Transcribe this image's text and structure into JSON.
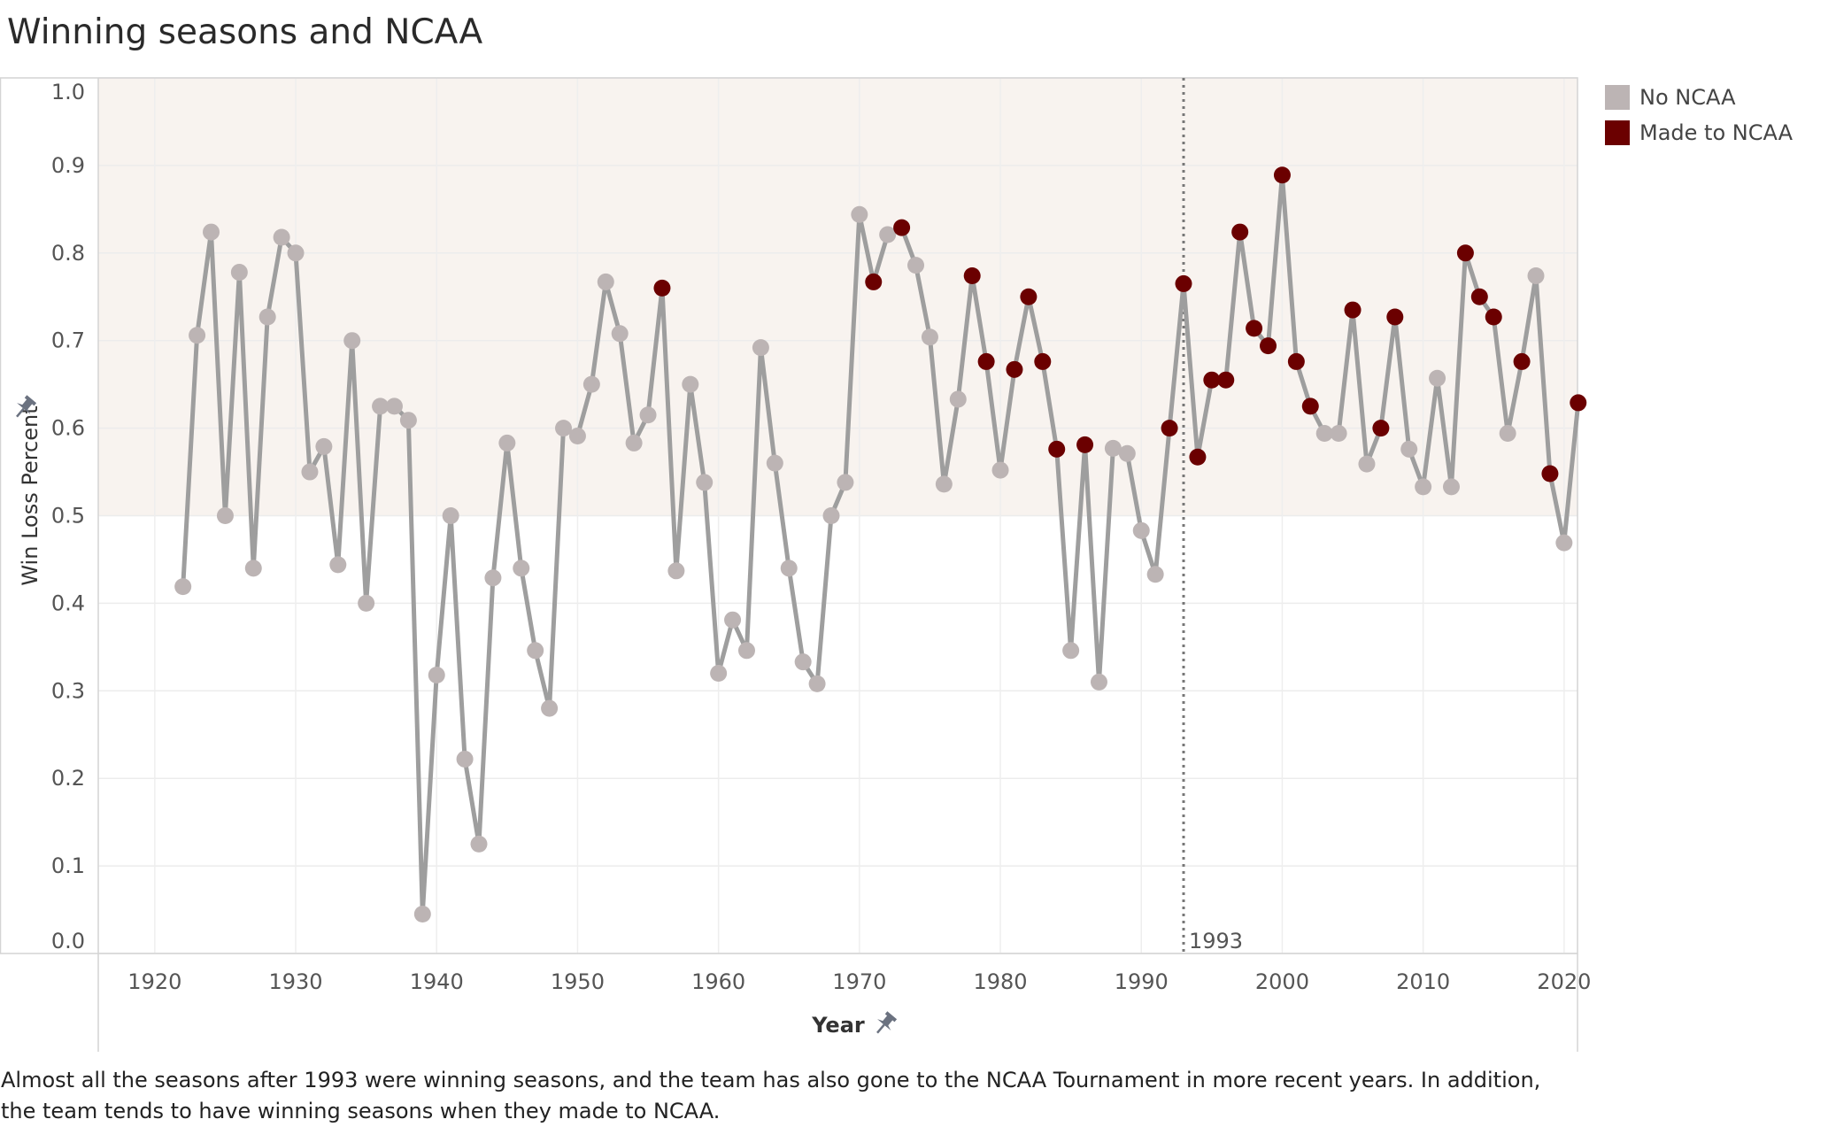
{
  "title": "Winning seasons and NCAA",
  "caption": "Almost all the seasons after 1993 were winning seasons, and the team has also gone to the NCAA Tournament in more recent years. In addition, the team tends to have winning seasons when they made to NCAA.",
  "legend": {
    "items": [
      {
        "label": "No NCAA",
        "color": "#bcb4b4"
      },
      {
        "label": "Made to NCAA",
        "color": "#6b0000"
      }
    ]
  },
  "chart_data": {
    "type": "line",
    "title": "Winning seasons and NCAA",
    "xlabel": "Year",
    "ylabel": "Win Loss Percent",
    "xlim": [
      1918,
      2025
    ],
    "ylim": [
      0,
      1
    ],
    "x_ticks": [
      "1920",
      "1930",
      "1940",
      "1950",
      "1960",
      "1970",
      "1980",
      "1990",
      "2000",
      "2010",
      "2020"
    ],
    "y_ticks": [
      "0.0",
      "0.1",
      "0.2",
      "0.3",
      "0.4",
      "0.5",
      "0.6",
      "0.7",
      "0.8",
      "0.9",
      "1.0"
    ],
    "grid": true,
    "shaded_band": [
      0.5,
      1.0
    ],
    "reference_line": {
      "x": 1993,
      "label": "1993"
    },
    "legend_position": "top-right",
    "line_color": "#9e9e9e",
    "shade_color": "#f8f3ef",
    "series": [
      {
        "name": "No NCAA",
        "color": "#bcb4b4"
      },
      {
        "name": "Made to NCAA",
        "color": "#6b0000"
      }
    ],
    "points": [
      {
        "x": 1922,
        "y": 0.419,
        "ncaa": false
      },
      {
        "x": 1923,
        "y": 0.706,
        "ncaa": false
      },
      {
        "x": 1924,
        "y": 0.824,
        "ncaa": false
      },
      {
        "x": 1925,
        "y": 0.5,
        "ncaa": false
      },
      {
        "x": 1926,
        "y": 0.778,
        "ncaa": false
      },
      {
        "x": 1927,
        "y": 0.44,
        "ncaa": false
      },
      {
        "x": 1928,
        "y": 0.727,
        "ncaa": false
      },
      {
        "x": 1929,
        "y": 0.818,
        "ncaa": false
      },
      {
        "x": 1930,
        "y": 0.8,
        "ncaa": false
      },
      {
        "x": 1931,
        "y": 0.55,
        "ncaa": false
      },
      {
        "x": 1932,
        "y": 0.579,
        "ncaa": false
      },
      {
        "x": 1933,
        "y": 0.444,
        "ncaa": false
      },
      {
        "x": 1934,
        "y": 0.7,
        "ncaa": false
      },
      {
        "x": 1935,
        "y": 0.4,
        "ncaa": false
      },
      {
        "x": 1936,
        "y": 0.625,
        "ncaa": false
      },
      {
        "x": 1937,
        "y": 0.625,
        "ncaa": false
      },
      {
        "x": 1938,
        "y": 0.609,
        "ncaa": false
      },
      {
        "x": 1939,
        "y": 0.045,
        "ncaa": false
      },
      {
        "x": 1940,
        "y": 0.318,
        "ncaa": false
      },
      {
        "x": 1941,
        "y": 0.5,
        "ncaa": false
      },
      {
        "x": 1942,
        "y": 0.222,
        "ncaa": false
      },
      {
        "x": 1943,
        "y": 0.125,
        "ncaa": false
      },
      {
        "x": 1944,
        "y": 0.429,
        "ncaa": false
      },
      {
        "x": 1945,
        "y": 0.583,
        "ncaa": false
      },
      {
        "x": 1946,
        "y": 0.44,
        "ncaa": false
      },
      {
        "x": 1947,
        "y": 0.346,
        "ncaa": false
      },
      {
        "x": 1948,
        "y": 0.28,
        "ncaa": false
      },
      {
        "x": 1949,
        "y": 0.6,
        "ncaa": false
      },
      {
        "x": 1950,
        "y": 0.591,
        "ncaa": false
      },
      {
        "x": 1951,
        "y": 0.65,
        "ncaa": false
      },
      {
        "x": 1952,
        "y": 0.767,
        "ncaa": false
      },
      {
        "x": 1953,
        "y": 0.708,
        "ncaa": false
      },
      {
        "x": 1954,
        "y": 0.583,
        "ncaa": false
      },
      {
        "x": 1955,
        "y": 0.615,
        "ncaa": false
      },
      {
        "x": 1956,
        "y": 0.76,
        "ncaa": true
      },
      {
        "x": 1957,
        "y": 0.437,
        "ncaa": false
      },
      {
        "x": 1958,
        "y": 0.65,
        "ncaa": false
      },
      {
        "x": 1959,
        "y": 0.538,
        "ncaa": false
      },
      {
        "x": 1960,
        "y": 0.32,
        "ncaa": false
      },
      {
        "x": 1961,
        "y": 0.381,
        "ncaa": false
      },
      {
        "x": 1962,
        "y": 0.346,
        "ncaa": false
      },
      {
        "x": 1963,
        "y": 0.692,
        "ncaa": false
      },
      {
        "x": 1964,
        "y": 0.56,
        "ncaa": false
      },
      {
        "x": 1965,
        "y": 0.44,
        "ncaa": false
      },
      {
        "x": 1966,
        "y": 0.333,
        "ncaa": false
      },
      {
        "x": 1967,
        "y": 0.308,
        "ncaa": false
      },
      {
        "x": 1968,
        "y": 0.5,
        "ncaa": false
      },
      {
        "x": 1969,
        "y": 0.538,
        "ncaa": false
      },
      {
        "x": 1970,
        "y": 0.844,
        "ncaa": false
      },
      {
        "x": 1971,
        "y": 0.767,
        "ncaa": true
      },
      {
        "x": 1972,
        "y": 0.821,
        "ncaa": false
      },
      {
        "x": 1973,
        "y": 0.829,
        "ncaa": true
      },
      {
        "x": 1974,
        "y": 0.786,
        "ncaa": false
      },
      {
        "x": 1975,
        "y": 0.704,
        "ncaa": false
      },
      {
        "x": 1976,
        "y": 0.536,
        "ncaa": false
      },
      {
        "x": 1977,
        "y": 0.633,
        "ncaa": false
      },
      {
        "x": 1978,
        "y": 0.774,
        "ncaa": true
      },
      {
        "x": 1979,
        "y": 0.676,
        "ncaa": true
      },
      {
        "x": 1980,
        "y": 0.552,
        "ncaa": false
      },
      {
        "x": 1981,
        "y": 0.667,
        "ncaa": true
      },
      {
        "x": 1982,
        "y": 0.75,
        "ncaa": true
      },
      {
        "x": 1983,
        "y": 0.676,
        "ncaa": true
      },
      {
        "x": 1984,
        "y": 0.576,
        "ncaa": true
      },
      {
        "x": 1985,
        "y": 0.346,
        "ncaa": false
      },
      {
        "x": 1986,
        "y": 0.581,
        "ncaa": true
      },
      {
        "x": 1987,
        "y": 0.31,
        "ncaa": false
      },
      {
        "x": 1988,
        "y": 0.577,
        "ncaa": false
      },
      {
        "x": 1989,
        "y": 0.571,
        "ncaa": false
      },
      {
        "x": 1990,
        "y": 0.483,
        "ncaa": false
      },
      {
        "x": 1991,
        "y": 0.433,
        "ncaa": false
      },
      {
        "x": 1992,
        "y": 0.6,
        "ncaa": true
      },
      {
        "x": 1993,
        "y": 0.765,
        "ncaa": true
      },
      {
        "x": 1994,
        "y": 0.567,
        "ncaa": true
      },
      {
        "x": 1995,
        "y": 0.655,
        "ncaa": true
      },
      {
        "x": 1996,
        "y": 0.655,
        "ncaa": true
      },
      {
        "x": 1997,
        "y": 0.824,
        "ncaa": true
      },
      {
        "x": 1998,
        "y": 0.714,
        "ncaa": true
      },
      {
        "x": 1999,
        "y": 0.694,
        "ncaa": true
      },
      {
        "x": 2000,
        "y": 0.889,
        "ncaa": true
      },
      {
        "x": 2001,
        "y": 0.676,
        "ncaa": true
      },
      {
        "x": 2002,
        "y": 0.625,
        "ncaa": true
      },
      {
        "x": 2003,
        "y": 0.594,
        "ncaa": false
      },
      {
        "x": 2004,
        "y": 0.594,
        "ncaa": false
      },
      {
        "x": 2005,
        "y": 0.735,
        "ncaa": true
      },
      {
        "x": 2006,
        "y": 0.559,
        "ncaa": false
      },
      {
        "x": 2007,
        "y": 0.6,
        "ncaa": true
      },
      {
        "x": 2008,
        "y": 0.727,
        "ncaa": true
      },
      {
        "x": 2009,
        "y": 0.576,
        "ncaa": false
      },
      {
        "x": 2010,
        "y": 0.533,
        "ncaa": false
      },
      {
        "x": 2011,
        "y": 0.657,
        "ncaa": false
      },
      {
        "x": 2012,
        "y": 0.533,
        "ncaa": false
      },
      {
        "x": 2013,
        "y": 0.8,
        "ncaa": true
      },
      {
        "x": 2014,
        "y": 0.75,
        "ncaa": true
      },
      {
        "x": 2015,
        "y": 0.727,
        "ncaa": true
      },
      {
        "x": 2016,
        "y": 0.594,
        "ncaa": false
      },
      {
        "x": 2017,
        "y": 0.676,
        "ncaa": true
      },
      {
        "x": 2018,
        "y": 0.774,
        "ncaa": false
      },
      {
        "x": 2019,
        "y": 0.548,
        "ncaa": true
      },
      {
        "x": 2020,
        "y": 0.469,
        "ncaa": false
      },
      {
        "x": 2021,
        "y": 0.629,
        "ncaa": true
      }
    ]
  }
}
